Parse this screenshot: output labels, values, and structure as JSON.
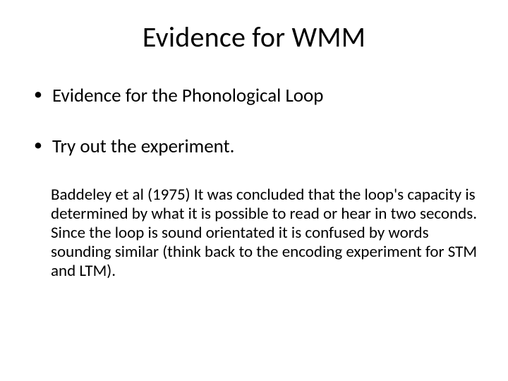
{
  "slide": {
    "title": "Evidence for WMM",
    "title_fontsize": 40,
    "title_color": "#000000",
    "background_color": "#ffffff",
    "bullets": [
      {
        "text": "Evidence for the Phonological Loop"
      },
      {
        "text": "Try out the experiment."
      }
    ],
    "bullet_fontsize": 27,
    "body": {
      "para1": "Baddeley et al (1975) It was concluded that the loop's capacity is determined by what it is possible to read or hear in two seconds.",
      "para2": "Since the loop is sound orientated it is confused by words sounding similar (think back to the encoding experiment for STM and LTM).",
      "fontsize": 23,
      "color": "#000000"
    }
  }
}
